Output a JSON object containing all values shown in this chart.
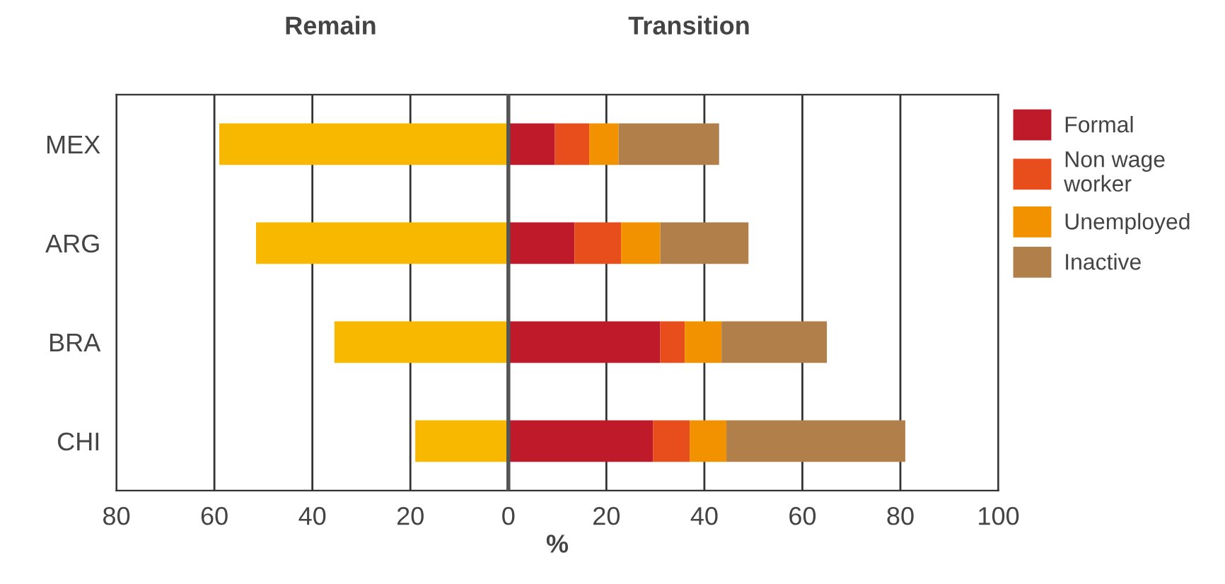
{
  "chart_data": {
    "type": "bar",
    "orientation": "horizontal",
    "stacked": true,
    "categories": [
      "MEX",
      "ARG",
      "BRA",
      "CHI"
    ],
    "series": [
      {
        "color": "#f9b800",
        "values": [
          -59,
          -51.5,
          -35.5,
          -19
        ]
      },
      {
        "name": "Formal",
        "color": "#be1a2a",
        "values": [
          9.5,
          13.5,
          31,
          29.5
        ]
      },
      {
        "name": "Non wage\nworker",
        "color": "#e84e1b",
        "values": [
          7,
          9.5,
          5,
          7.5
        ]
      },
      {
        "name": "Unemployed",
        "color": "#f39200",
        "values": [
          6,
          8,
          7.5,
          7.5
        ]
      },
      {
        "name": "Inactive",
        "color": "#b07f4a",
        "values": [
          20.5,
          18,
          21.5,
          36.5
        ]
      }
    ],
    "xlim": [
      -80,
      100
    ],
    "xticks": [
      {
        "value": -80,
        "label": "80"
      },
      {
        "value": -60,
        "label": "60"
      },
      {
        "value": -40,
        "label": "40"
      },
      {
        "value": -20,
        "label": "20"
      },
      0,
      20,
      40,
      60,
      80,
      100
    ],
    "xlabel": "%",
    "annotations": [
      "Remain",
      "Transition"
    ],
    "ref_lines": [
      {
        "axis": "x",
        "value": 0,
        "color": "#555555"
      }
    ],
    "grid": "x",
    "legend": "right"
  }
}
